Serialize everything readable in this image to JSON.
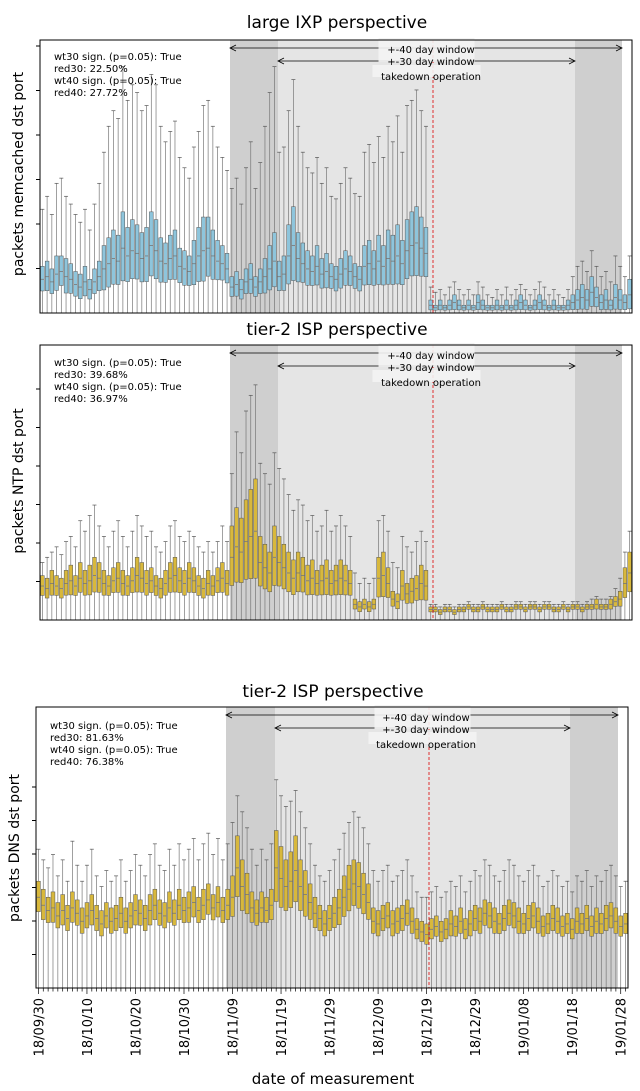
{
  "chart_data": [
    {
      "type": "box",
      "title": "large IXP perspective",
      "ylabel": "packets memcached dst port",
      "color": "#8ec5dc",
      "stats": [
        "wt30 sign. (p=0.05): True",
        "red30: 22.50%",
        "wt40 sign. (p=0.05): True",
        "red40: 27.72%"
      ],
      "windows": [
        "+-40 day window",
        "+-30 day window",
        "takedown operation"
      ],
      "ylim": [
        0,
        1
      ],
      "median": [
        0.13,
        0.14,
        0.12,
        0.15,
        0.16,
        0.14,
        0.13,
        0.11,
        0.1,
        0.12,
        0.09,
        0.12,
        0.14,
        0.17,
        0.19,
        0.21,
        0.2,
        0.25,
        0.22,
        0.24,
        0.23,
        0.21,
        0.22,
        0.26,
        0.24,
        0.2,
        0.19,
        0.21,
        0.22,
        0.18,
        0.17,
        0.16,
        0.19,
        0.22,
        0.24,
        0.25,
        0.22,
        0.2,
        0.19,
        0.17,
        0.1,
        0.11,
        0.09,
        0.12,
        0.13,
        0.1,
        0.12,
        0.14,
        0.17,
        0.2,
        0.14,
        0.15,
        0.22,
        0.26,
        0.21,
        0.19,
        0.17,
        0.16,
        0.18,
        0.15,
        0.16,
        0.14,
        0.13,
        0.15,
        0.17,
        0.16,
        0.14,
        0.13,
        0.18,
        0.19,
        0.17,
        0.2,
        0.18,
        0.21,
        0.2,
        0.22,
        0.19,
        0.24,
        0.26,
        0.27,
        0.25,
        0.23,
        0.03,
        0.02,
        0.03,
        0.02,
        0.03,
        0.04,
        0.03,
        0.02,
        0.03,
        0.02,
        0.04,
        0.03,
        0.02,
        0.02,
        0.03,
        0.02,
        0.03,
        0.02,
        0.03,
        0.04,
        0.03,
        0.02,
        0.03,
        0.04,
        0.03,
        0.02,
        0.03,
        0.02,
        0.02,
        0.03,
        0.04,
        0.05,
        0.06,
        0.05,
        0.08,
        0.06,
        0.04,
        0.05,
        0.03,
        0.06,
        0.05,
        0.04,
        0.07
      ],
      "spread": [
        0.05,
        0.06,
        0.05,
        0.07,
        0.06,
        0.07,
        0.06,
        0.05,
        0.05,
        0.06,
        0.04,
        0.05,
        0.06,
        0.09,
        0.1,
        0.11,
        0.1,
        0.14,
        0.11,
        0.12,
        0.11,
        0.1,
        0.11,
        0.13,
        0.12,
        0.09,
        0.08,
        0.09,
        0.1,
        0.07,
        0.07,
        0.06,
        0.09,
        0.11,
        0.13,
        0.12,
        0.1,
        0.08,
        0.07,
        0.06,
        0.04,
        0.05,
        0.04,
        0.05,
        0.06,
        0.04,
        0.05,
        0.07,
        0.09,
        0.11,
        0.06,
        0.07,
        0.12,
        0.15,
        0.1,
        0.08,
        0.07,
        0.06,
        0.08,
        0.06,
        0.07,
        0.05,
        0.05,
        0.06,
        0.07,
        0.06,
        0.05,
        0.05,
        0.08,
        0.09,
        0.07,
        0.1,
        0.08,
        0.11,
        0.1,
        0.12,
        0.09,
        0.12,
        0.13,
        0.14,
        0.12,
        0.1,
        0.02,
        0.01,
        0.02,
        0.01,
        0.02,
        0.03,
        0.02,
        0.01,
        0.02,
        0.01,
        0.03,
        0.02,
        0.01,
        0.01,
        0.02,
        0.01,
        0.02,
        0.01,
        0.02,
        0.03,
        0.02,
        0.01,
        0.02,
        0.03,
        0.02,
        0.01,
        0.02,
        0.01,
        0.01,
        0.02,
        0.03,
        0.04,
        0.05,
        0.04,
        0.06,
        0.04,
        0.03,
        0.04,
        0.02,
        0.05,
        0.04,
        0.03,
        0.06
      ],
      "whisker_top": [
        0.4,
        0.45,
        0.38,
        0.5,
        0.52,
        0.45,
        0.42,
        0.38,
        0.35,
        0.4,
        0.32,
        0.42,
        0.5,
        0.62,
        0.72,
        0.78,
        0.75,
        0.95,
        0.82,
        0.88,
        0.85,
        0.78,
        0.8,
        0.92,
        0.88,
        0.72,
        0.66,
        0.7,
        0.74,
        0.6,
        0.56,
        0.52,
        0.64,
        0.7,
        0.8,
        0.82,
        0.72,
        0.64,
        0.6,
        0.55,
        0.48,
        0.52,
        0.42,
        0.56,
        0.66,
        0.48,
        0.58,
        0.72,
        0.85,
        0.95,
        0.62,
        0.64,
        0.78,
        0.9,
        0.72,
        0.62,
        0.56,
        0.54,
        0.6,
        0.5,
        0.56,
        0.45,
        0.44,
        0.5,
        0.56,
        0.52,
        0.46,
        0.45,
        0.62,
        0.65,
        0.58,
        0.68,
        0.6,
        0.72,
        0.66,
        0.76,
        0.62,
        0.8,
        0.82,
        0.86,
        0.78,
        0.72,
        0.1,
        0.08,
        0.09,
        0.07,
        0.1,
        0.12,
        0.09,
        0.07,
        0.09,
        0.07,
        0.12,
        0.1,
        0.07,
        0.06,
        0.09,
        0.07,
        0.1,
        0.07,
        0.09,
        0.11,
        0.09,
        0.07,
        0.09,
        0.12,
        0.1,
        0.07,
        0.09,
        0.07,
        0.06,
        0.09,
        0.14,
        0.18,
        0.2,
        0.16,
        0.24,
        0.18,
        0.14,
        0.16,
        0.12,
        0.22,
        0.18,
        0.14,
        0.22
      ]
    },
    {
      "type": "box",
      "title": "tier-2 ISP perspective",
      "ylabel": "packets NTP dst port",
      "color": "#d8b83c",
      "stats": [
        "wt30 sign. (p=0.05): True",
        "red30: 39.68%",
        "wt40 sign. (p=0.05): True",
        "red40: 36.97%"
      ],
      "windows": [
        "+-40 day window",
        "+-30 day window",
        "takedown operation"
      ],
      "ylim": [
        0,
        1
      ],
      "median": [
        0.13,
        0.12,
        0.14,
        0.13,
        0.12,
        0.14,
        0.15,
        0.13,
        0.16,
        0.14,
        0.15,
        0.17,
        0.16,
        0.14,
        0.13,
        0.15,
        0.16,
        0.14,
        0.13,
        0.15,
        0.17,
        0.16,
        0.14,
        0.15,
        0.13,
        0.12,
        0.14,
        0.16,
        0.17,
        0.15,
        0.14,
        0.16,
        0.15,
        0.13,
        0.12,
        0.14,
        0.13,
        0.15,
        0.16,
        0.14,
        0.24,
        0.28,
        0.26,
        0.3,
        0.32,
        0.34,
        0.22,
        0.2,
        0.18,
        0.24,
        0.22,
        0.2,
        0.18,
        0.16,
        0.18,
        0.17,
        0.15,
        0.16,
        0.14,
        0.15,
        0.16,
        0.14,
        0.15,
        0.16,
        0.15,
        0.14,
        0.06,
        0.05,
        0.06,
        0.05,
        0.06,
        0.16,
        0.17,
        0.14,
        0.08,
        0.07,
        0.13,
        0.1,
        0.11,
        0.12,
        0.14,
        0.13,
        0.04,
        0.04,
        0.03,
        0.04,
        0.04,
        0.03,
        0.04,
        0.04,
        0.05,
        0.04,
        0.04,
        0.05,
        0.04,
        0.04,
        0.04,
        0.05,
        0.04,
        0.04,
        0.05,
        0.05,
        0.04,
        0.05,
        0.05,
        0.04,
        0.05,
        0.05,
        0.04,
        0.04,
        0.05,
        0.04,
        0.05,
        0.05,
        0.04,
        0.05,
        0.05,
        0.06,
        0.05,
        0.05,
        0.06,
        0.07,
        0.08,
        0.14,
        0.18
      ],
      "spread": [
        0.04,
        0.04,
        0.05,
        0.04,
        0.04,
        0.05,
        0.06,
        0.04,
        0.06,
        0.05,
        0.06,
        0.07,
        0.06,
        0.05,
        0.04,
        0.05,
        0.06,
        0.05,
        0.04,
        0.05,
        0.07,
        0.06,
        0.05,
        0.05,
        0.04,
        0.04,
        0.05,
        0.06,
        0.07,
        0.05,
        0.05,
        0.06,
        0.05,
        0.04,
        0.04,
        0.05,
        0.04,
        0.05,
        0.06,
        0.05,
        0.12,
        0.15,
        0.13,
        0.16,
        0.18,
        0.2,
        0.1,
        0.09,
        0.08,
        0.12,
        0.1,
        0.09,
        0.08,
        0.07,
        0.08,
        0.07,
        0.06,
        0.07,
        0.05,
        0.06,
        0.07,
        0.05,
        0.06,
        0.07,
        0.06,
        0.05,
        0.02,
        0.02,
        0.02,
        0.02,
        0.02,
        0.08,
        0.09,
        0.06,
        0.03,
        0.03,
        0.06,
        0.04,
        0.05,
        0.05,
        0.07,
        0.06,
        0.01,
        0.01,
        0.01,
        0.01,
        0.01,
        0.01,
        0.01,
        0.01,
        0.01,
        0.01,
        0.01,
        0.01,
        0.01,
        0.01,
        0.01,
        0.01,
        0.01,
        0.01,
        0.01,
        0.01,
        0.01,
        0.01,
        0.01,
        0.01,
        0.01,
        0.01,
        0.01,
        0.01,
        0.01,
        0.01,
        0.01,
        0.01,
        0.01,
        0.01,
        0.01,
        0.02,
        0.01,
        0.01,
        0.02,
        0.02,
        0.03,
        0.06,
        0.08
      ],
      "whisker_top": [
        0.22,
        0.24,
        0.26,
        0.28,
        0.25,
        0.3,
        0.32,
        0.28,
        0.38,
        0.34,
        0.4,
        0.44,
        0.36,
        0.32,
        0.28,
        0.34,
        0.38,
        0.32,
        0.28,
        0.34,
        0.4,
        0.36,
        0.32,
        0.34,
        0.28,
        0.26,
        0.3,
        0.36,
        0.38,
        0.32,
        0.3,
        0.34,
        0.32,
        0.28,
        0.26,
        0.3,
        0.26,
        0.3,
        0.36,
        0.3,
        0.56,
        0.72,
        0.64,
        0.8,
        0.86,
        0.9,
        0.6,
        0.56,
        0.52,
        0.64,
        0.58,
        0.54,
        0.48,
        0.42,
        0.46,
        0.44,
        0.38,
        0.4,
        0.34,
        0.36,
        0.42,
        0.34,
        0.36,
        0.4,
        0.36,
        0.32,
        0.18,
        0.14,
        0.16,
        0.14,
        0.16,
        0.38,
        0.4,
        0.34,
        0.22,
        0.2,
        0.32,
        0.28,
        0.26,
        0.3,
        0.34,
        0.3,
        0.06,
        0.06,
        0.05,
        0.06,
        0.06,
        0.05,
        0.06,
        0.06,
        0.07,
        0.06,
        0.06,
        0.07,
        0.06,
        0.06,
        0.06,
        0.07,
        0.06,
        0.06,
        0.07,
        0.07,
        0.06,
        0.07,
        0.07,
        0.06,
        0.07,
        0.07,
        0.06,
        0.06,
        0.07,
        0.06,
        0.07,
        0.07,
        0.06,
        0.07,
        0.08,
        0.09,
        0.08,
        0.08,
        0.09,
        0.12,
        0.16,
        0.26,
        0.34
      ]
    },
    {
      "type": "box",
      "title": "tier-2 ISP perspective",
      "ylabel": "packets DNS dst port",
      "xlabel": "date of measurement",
      "color": "#d8b83c",
      "stats": [
        "wt30 sign. (p=0.05): True",
        "red30: 81.63%",
        "wt40 sign. (p=0.05): True",
        "red40: 76.38%"
      ],
      "windows": [
        "+-40 day window",
        "+-30 day window",
        "takedown operation"
      ],
      "ylim": [
        0,
        1
      ],
      "xticks": [
        "18/09/30",
        "18/10/10",
        "18/10/20",
        "18/10/30",
        "18/11/09",
        "18/11/19",
        "18/11/29",
        "18/12/09",
        "18/12/19",
        "18/12/29",
        "19/01/08",
        "19/01/18",
        "19/01/28"
      ],
      "median": [
        0.34,
        0.31,
        0.29,
        0.3,
        0.27,
        0.29,
        0.26,
        0.3,
        0.28,
        0.25,
        0.27,
        0.29,
        0.26,
        0.24,
        0.27,
        0.25,
        0.26,
        0.28,
        0.25,
        0.27,
        0.29,
        0.28,
        0.26,
        0.29,
        0.31,
        0.28,
        0.27,
        0.3,
        0.28,
        0.31,
        0.29,
        0.3,
        0.32,
        0.29,
        0.31,
        0.33,
        0.3,
        0.32,
        0.29,
        0.31,
        0.34,
        0.45,
        0.38,
        0.35,
        0.3,
        0.28,
        0.3,
        0.29,
        0.31,
        0.45,
        0.41,
        0.38,
        0.4,
        0.44,
        0.38,
        0.35,
        0.32,
        0.28,
        0.26,
        0.24,
        0.26,
        0.28,
        0.3,
        0.34,
        0.37,
        0.39,
        0.38,
        0.35,
        0.32,
        0.25,
        0.24,
        0.26,
        0.27,
        0.24,
        0.25,
        0.26,
        0.28,
        0.25,
        0.22,
        0.21,
        0.2,
        0.22,
        0.23,
        0.21,
        0.22,
        0.24,
        0.23,
        0.25,
        0.22,
        0.24,
        0.26,
        0.25,
        0.28,
        0.27,
        0.25,
        0.24,
        0.26,
        0.28,
        0.27,
        0.25,
        0.24,
        0.26,
        0.27,
        0.25,
        0.23,
        0.24,
        0.26,
        0.25,
        0.23,
        0.24,
        0.22,
        0.25,
        0.24,
        0.26,
        0.23,
        0.25,
        0.24,
        0.26,
        0.27,
        0.25,
        0.23,
        0.24
      ],
      "spread": [
        0.06,
        0.06,
        0.05,
        0.06,
        0.05,
        0.06,
        0.05,
        0.06,
        0.05,
        0.05,
        0.05,
        0.06,
        0.05,
        0.05,
        0.05,
        0.05,
        0.05,
        0.06,
        0.05,
        0.05,
        0.06,
        0.05,
        0.05,
        0.06,
        0.06,
        0.05,
        0.05,
        0.06,
        0.05,
        0.06,
        0.05,
        0.06,
        0.06,
        0.05,
        0.06,
        0.06,
        0.05,
        0.06,
        0.05,
        0.06,
        0.08,
        0.12,
        0.1,
        0.08,
        0.06,
        0.05,
        0.06,
        0.05,
        0.06,
        0.14,
        0.12,
        0.1,
        0.11,
        0.13,
        0.1,
        0.09,
        0.07,
        0.06,
        0.05,
        0.05,
        0.05,
        0.06,
        0.07,
        0.08,
        0.09,
        0.09,
        0.09,
        0.08,
        0.07,
        0.05,
        0.05,
        0.05,
        0.05,
        0.05,
        0.05,
        0.05,
        0.05,
        0.05,
        0.04,
        0.04,
        0.04,
        0.04,
        0.04,
        0.04,
        0.04,
        0.05,
        0.04,
        0.05,
        0.04,
        0.05,
        0.05,
        0.05,
        0.05,
        0.05,
        0.05,
        0.04,
        0.05,
        0.05,
        0.05,
        0.05,
        0.04,
        0.05,
        0.05,
        0.05,
        0.04,
        0.04,
        0.05,
        0.05,
        0.04,
        0.04,
        0.04,
        0.05,
        0.04,
        0.05,
        0.04,
        0.05,
        0.04,
        0.05,
        0.05,
        0.05,
        0.04,
        0.04
      ],
      "whisker_top": [
        0.52,
        0.48,
        0.45,
        0.5,
        0.42,
        0.48,
        0.4,
        0.55,
        0.46,
        0.4,
        0.46,
        0.52,
        0.42,
        0.38,
        0.44,
        0.4,
        0.42,
        0.48,
        0.4,
        0.44,
        0.5,
        0.46,
        0.42,
        0.5,
        0.54,
        0.46,
        0.44,
        0.52,
        0.46,
        0.54,
        0.48,
        0.52,
        0.56,
        0.48,
        0.54,
        0.58,
        0.5,
        0.56,
        0.48,
        0.54,
        0.62,
        0.72,
        0.66,
        0.6,
        0.52,
        0.46,
        0.52,
        0.48,
        0.54,
        0.78,
        0.72,
        0.68,
        0.7,
        0.74,
        0.66,
        0.6,
        0.54,
        0.46,
        0.42,
        0.4,
        0.44,
        0.48,
        0.52,
        0.58,
        0.62,
        0.66,
        0.64,
        0.6,
        0.54,
        0.44,
        0.4,
        0.44,
        0.46,
        0.4,
        0.42,
        0.44,
        0.48,
        0.42,
        0.36,
        0.34,
        0.34,
        0.36,
        0.38,
        0.34,
        0.36,
        0.4,
        0.38,
        0.42,
        0.36,
        0.4,
        0.44,
        0.42,
        0.48,
        0.46,
        0.42,
        0.4,
        0.44,
        0.48,
        0.46,
        0.42,
        0.4,
        0.44,
        0.46,
        0.42,
        0.38,
        0.4,
        0.44,
        0.42,
        0.38,
        0.4,
        0.36,
        0.42,
        0.4,
        0.44,
        0.38,
        0.42,
        0.4,
        0.44,
        0.46,
        0.42,
        0.38,
        0.4
      ]
    }
  ]
}
